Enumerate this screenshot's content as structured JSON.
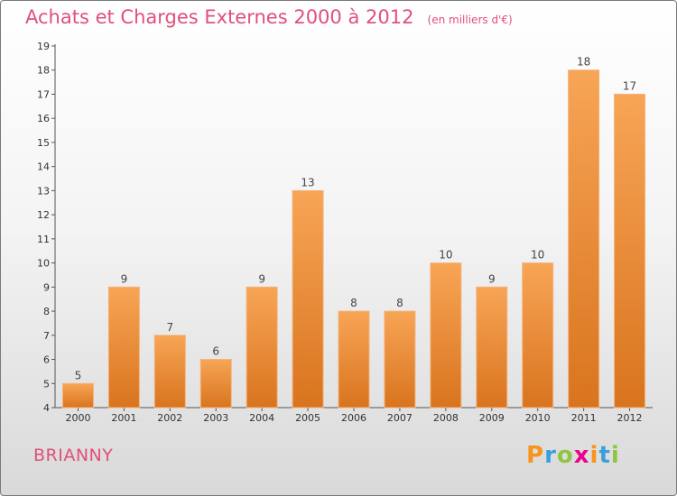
{
  "header": {
    "title": "Achats et Charges Externes 2000 à 2012",
    "unit": "(en milliers d'€)"
  },
  "commune": "BRIANNY",
  "logo": {
    "letters": [
      "P",
      "r",
      "o",
      "x",
      "i",
      "t",
      "i"
    ],
    "colors": [
      "#f7941d",
      "#3aa0db",
      "#8dc63f",
      "#ec008c",
      "#f7941d",
      "#3aa0db",
      "#8dc63f"
    ]
  },
  "chart_data": {
    "type": "bar",
    "title": "Achats et Charges Externes 2000 à 2012",
    "subtitle": "(en milliers d'€)",
    "categories": [
      "2000",
      "2001",
      "2002",
      "2003",
      "2004",
      "2005",
      "2006",
      "2007",
      "2008",
      "2009",
      "2010",
      "2011",
      "2012"
    ],
    "values": [
      5,
      9,
      7,
      6,
      9,
      13,
      8,
      8,
      10,
      9,
      10,
      18,
      17
    ],
    "ylim": [
      4,
      19
    ],
    "yticks": [
      4,
      5,
      6,
      7,
      8,
      9,
      10,
      11,
      12,
      13,
      14,
      15,
      16,
      17,
      18,
      19
    ],
    "grid": false,
    "bar_color": "#f0953a"
  }
}
